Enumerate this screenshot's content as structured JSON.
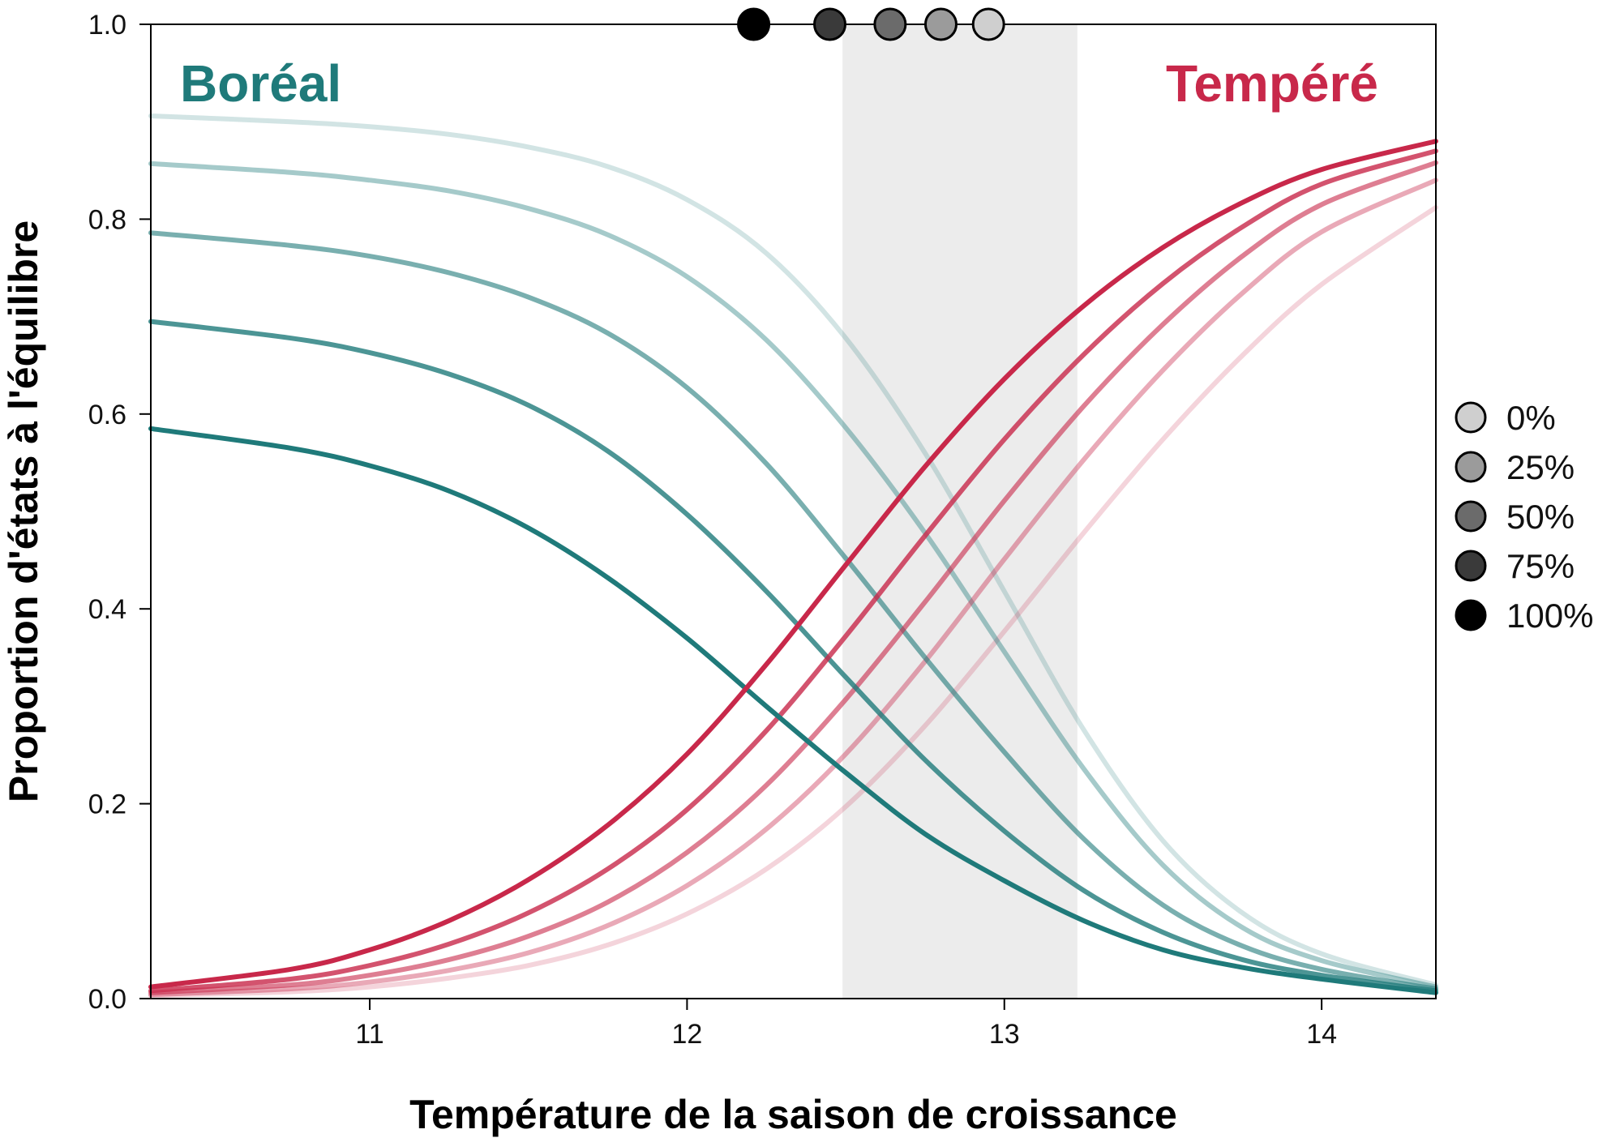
{
  "chart_data": {
    "type": "line",
    "title": "",
    "xlabel": "Température de la saison de croissance",
    "ylabel": "Proportion d'états à l'équilibre",
    "xlim": [
      10.31,
      14.36
    ],
    "ylim": [
      0,
      1
    ],
    "x_ticks": [
      {
        "value": 11,
        "label": "11"
      },
      {
        "value": 12,
        "label": "12"
      },
      {
        "value": 13,
        "label": "13"
      },
      {
        "value": 14,
        "label": "14"
      }
    ],
    "y_ticks": [
      {
        "value": 0.0,
        "label": "0.0"
      },
      {
        "value": 0.2,
        "label": "0.2"
      },
      {
        "value": 0.4,
        "label": "0.4"
      },
      {
        "value": 0.6,
        "label": "0.6"
      },
      {
        "value": 0.8,
        "label": "0.8"
      },
      {
        "value": 1.0,
        "label": "1.0"
      }
    ],
    "shaded_band": {
      "x_start": 12.49,
      "x_end": 13.23,
      "color": "#ececec"
    },
    "region_labels": [
      {
        "text": "Boréal",
        "color": "#1f7a7a",
        "position": "top-left"
      },
      {
        "text": "Tempéré",
        "color": "#c8284a",
        "position": "top-right"
      }
    ],
    "markers": {
      "y": 1.0,
      "points": [
        {
          "x": 12.21,
          "level": "100%",
          "fill": "#000000"
        },
        {
          "x": 12.45,
          "level": "75%",
          "fill": "#3a3a3a"
        },
        {
          "x": 12.64,
          "level": "50%",
          "fill": "#6b6b6b"
        },
        {
          "x": 12.8,
          "level": "25%",
          "fill": "#9b9b9b"
        },
        {
          "x": 12.95,
          "level": "0%",
          "fill": "#cfcfcf"
        }
      ]
    },
    "legend": {
      "position": "right",
      "entries": [
        {
          "label": "0%",
          "fill": "#cfcfcf"
        },
        {
          "label": "25%",
          "fill": "#9b9b9b"
        },
        {
          "label": "50%",
          "fill": "#6b6b6b"
        },
        {
          "label": "75%",
          "fill": "#3a3a3a"
        },
        {
          "label": "100%",
          "fill": "#000000"
        }
      ]
    },
    "series": [
      {
        "group": "boreal",
        "level": "100%",
        "color": "#1f7a7a",
        "opacity": 1.0,
        "x": [
          10.31,
          10.75,
          11.0,
          11.25,
          11.5,
          11.75,
          12.0,
          12.25,
          12.5,
          12.75,
          13.0,
          13.25,
          13.5,
          13.75,
          14.0,
          14.36
        ],
        "y": [
          0.585,
          0.565,
          0.547,
          0.521,
          0.483,
          0.432,
          0.37,
          0.3,
          0.232,
          0.169,
          0.121,
          0.08,
          0.05,
          0.032,
          0.02,
          0.006
        ]
      },
      {
        "group": "boreal",
        "level": "75%",
        "color": "#1f7a7a",
        "opacity": 0.8,
        "x": [
          10.31,
          10.75,
          11.0,
          11.25,
          11.5,
          11.75,
          12.0,
          12.25,
          12.5,
          12.75,
          13.0,
          13.25,
          13.5,
          13.75,
          14.0,
          14.36
        ],
        "y": [
          0.695,
          0.678,
          0.663,
          0.641,
          0.609,
          0.562,
          0.497,
          0.418,
          0.33,
          0.245,
          0.172,
          0.111,
          0.068,
          0.04,
          0.024,
          0.008
        ]
      },
      {
        "group": "boreal",
        "level": "50%",
        "color": "#1f7a7a",
        "opacity": 0.6,
        "x": [
          10.31,
          10.75,
          11.0,
          11.25,
          11.5,
          11.75,
          12.0,
          12.25,
          12.5,
          12.75,
          13.0,
          13.25,
          13.5,
          13.75,
          14.0,
          14.36
        ],
        "y": [
          0.786,
          0.773,
          0.762,
          0.745,
          0.72,
          0.683,
          0.627,
          0.549,
          0.452,
          0.35,
          0.253,
          0.164,
          0.096,
          0.054,
          0.03,
          0.01
        ]
      },
      {
        "group": "boreal",
        "level": "25%",
        "color": "#1f7a7a",
        "opacity": 0.4,
        "x": [
          10.31,
          10.75,
          11.0,
          11.25,
          11.5,
          11.75,
          12.0,
          12.25,
          12.5,
          12.75,
          13.0,
          13.25,
          13.5,
          13.75,
          14.0,
          14.36
        ],
        "y": [
          0.857,
          0.848,
          0.84,
          0.829,
          0.811,
          0.784,
          0.741,
          0.676,
          0.586,
          0.478,
          0.356,
          0.236,
          0.137,
          0.073,
          0.039,
          0.012
        ]
      },
      {
        "group": "boreal",
        "level": "0%",
        "color": "#1f7a7a",
        "opacity": 0.2,
        "x": [
          10.31,
          10.75,
          11.0,
          11.25,
          11.5,
          11.75,
          12.0,
          12.25,
          12.5,
          12.75,
          13.0,
          13.25,
          13.5,
          13.75,
          14.0,
          14.36
        ],
        "y": [
          0.906,
          0.9,
          0.895,
          0.887,
          0.874,
          0.854,
          0.82,
          0.765,
          0.678,
          0.56,
          0.418,
          0.276,
          0.162,
          0.088,
          0.046,
          0.014
        ]
      },
      {
        "group": "tempere",
        "level": "100%",
        "color": "#c8284a",
        "opacity": 1.0,
        "x": [
          10.31,
          10.75,
          11.0,
          11.25,
          11.5,
          11.75,
          12.0,
          12.25,
          12.5,
          12.75,
          13.0,
          13.25,
          13.5,
          13.75,
          14.0,
          14.36
        ],
        "y": [
          0.012,
          0.03,
          0.05,
          0.08,
          0.122,
          0.178,
          0.251,
          0.343,
          0.445,
          0.546,
          0.636,
          0.711,
          0.771,
          0.817,
          0.851,
          0.88
        ]
      },
      {
        "group": "tempere",
        "level": "75%",
        "color": "#c8284a",
        "opacity": 0.8,
        "x": [
          10.31,
          10.75,
          11.0,
          11.25,
          11.5,
          11.75,
          12.0,
          12.25,
          12.5,
          12.75,
          13.0,
          13.25,
          13.5,
          13.75,
          14.0,
          14.36
        ],
        "y": [
          0.008,
          0.02,
          0.034,
          0.056,
          0.088,
          0.133,
          0.194,
          0.275,
          0.372,
          0.475,
          0.574,
          0.661,
          0.734,
          0.792,
          0.836,
          0.87
        ]
      },
      {
        "group": "tempere",
        "level": "50%",
        "color": "#c8284a",
        "opacity": 0.6,
        "x": [
          10.31,
          10.75,
          11.0,
          11.25,
          11.5,
          11.75,
          12.0,
          12.25,
          12.5,
          12.75,
          13.0,
          13.25,
          13.5,
          13.75,
          14.0,
          14.36
        ],
        "y": [
          0.006,
          0.014,
          0.024,
          0.04,
          0.064,
          0.099,
          0.15,
          0.219,
          0.307,
          0.407,
          0.511,
          0.608,
          0.692,
          0.762,
          0.815,
          0.858
        ]
      },
      {
        "group": "tempere",
        "level": "25%",
        "color": "#c8284a",
        "opacity": 0.4,
        "x": [
          10.31,
          10.75,
          11.0,
          11.25,
          11.5,
          11.75,
          12.0,
          12.25,
          12.5,
          12.75,
          13.0,
          13.25,
          13.5,
          13.75,
          14.0,
          14.36
        ],
        "y": [
          0.004,
          0.01,
          0.017,
          0.029,
          0.047,
          0.075,
          0.116,
          0.174,
          0.251,
          0.346,
          0.451,
          0.553,
          0.645,
          0.724,
          0.787,
          0.84
        ]
      },
      {
        "group": "tempere",
        "level": "0%",
        "color": "#c8284a",
        "opacity": 0.2,
        "x": [
          10.31,
          10.75,
          11.0,
          11.25,
          11.5,
          11.75,
          12.0,
          12.25,
          12.5,
          12.75,
          13.0,
          13.25,
          13.5,
          13.75,
          14.0,
          14.36
        ],
        "y": [
          0.003,
          0.007,
          0.012,
          0.021,
          0.034,
          0.055,
          0.087,
          0.133,
          0.197,
          0.28,
          0.377,
          0.478,
          0.574,
          0.66,
          0.733,
          0.812
        ]
      }
    ]
  }
}
